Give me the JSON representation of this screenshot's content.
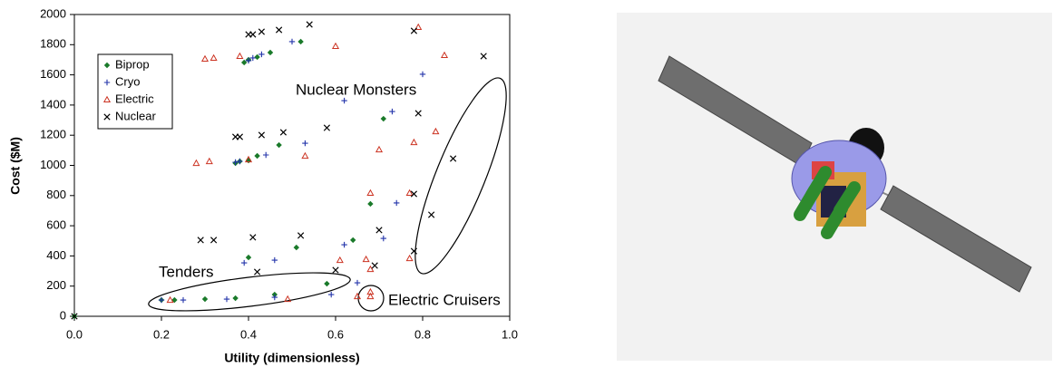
{
  "chart_data": {
    "type": "scatter",
    "xlabel": "Utility (dimensionless)",
    "ylabel": "Cost ($M)",
    "xlim": [
      0,
      1
    ],
    "ylim": [
      0,
      2000
    ],
    "xticks": [
      {
        "value": 0,
        "label": "0.0"
      },
      0.2,
      0.4,
      0.6,
      0.8,
      {
        "value": 1,
        "label": "1.0"
      }
    ],
    "yticks": [
      0,
      200,
      400,
      600,
      800,
      1000,
      1200,
      1400,
      1600,
      1800,
      2000
    ],
    "legend": "upper left",
    "annotations": [
      "Nuclear Monsters",
      "Tenders",
      "Electric Cruisers"
    ],
    "series": [
      {
        "name": "Biprop",
        "color": "#1a7a2a",
        "marker": "diamond",
        "x": [
          0,
          0.2,
          0.23,
          0.3,
          0.37,
          0.46,
          0.58,
          0.51,
          0.64,
          0.68,
          0.4,
          0.37,
          0.38,
          0.4,
          0.42,
          0.47,
          0.71,
          0.52,
          0.4,
          0.42,
          0.45,
          0.39
        ],
        "values": [
          0,
          108,
          108,
          114,
          120,
          144,
          216,
          456,
          505,
          745,
          390,
          1015,
          1027,
          1033,
          1063,
          1135,
          1309,
          1820,
          1700,
          1718,
          1748,
          1682
        ]
      },
      {
        "name": "Cryo",
        "color": "#2233aa",
        "marker": "plus",
        "x": [
          0.2,
          0.25,
          0.35,
          0.46,
          0.59,
          0.65,
          0.62,
          0.71,
          0.74,
          0.37,
          0.38,
          0.44,
          0.53,
          0.62,
          0.73,
          0.8,
          0.4,
          0.41,
          0.43,
          0.5,
          0.39,
          0.46
        ],
        "values": [
          108,
          108,
          114,
          126,
          144,
          222,
          474,
          516,
          751,
          1021,
          1027,
          1069,
          1147,
          1429,
          1357,
          1604,
          1694,
          1712,
          1736,
          1820,
          354,
          372
        ]
      },
      {
        "name": "Electric",
        "color": "#cc3322",
        "marker": "triangle",
        "x": [
          0.22,
          0.49,
          0.61,
          0.65,
          0.68,
          0.68,
          0.68,
          0.67,
          0.68,
          0.7,
          0.77,
          0.78,
          0.28,
          0.31,
          0.4,
          0.53,
          0.3,
          0.32,
          0.38,
          0.6,
          0.79,
          0.85,
          0.83,
          0.77
        ],
        "values": [
          108,
          114,
          372,
          132,
          132,
          162,
          312,
          378,
          817,
          1105,
          817,
          1153,
          1015,
          1027,
          1039,
          1063,
          1706,
          1712,
          1724,
          1790,
          1916,
          1730,
          1225,
          384
        ]
      },
      {
        "name": "Nuclear",
        "color": "#000000",
        "marker": "x",
        "x": [
          0,
          0.29,
          0.32,
          0.41,
          0.52,
          0.42,
          0.6,
          0.69,
          0.7,
          0.78,
          0.37,
          0.38,
          0.43,
          0.48,
          0.58,
          0.78,
          0.79,
          0.87,
          0.82,
          0.94,
          0.4,
          0.41,
          0.43,
          0.47,
          0.54,
          0.78
        ],
        "values": [
          0,
          505,
          505,
          523,
          535,
          294,
          306,
          336,
          571,
          432,
          1189,
          1189,
          1201,
          1219,
          1249,
          811,
          1345,
          1045,
          673,
          1724,
          1868,
          1868,
          1886,
          1898,
          1934,
          1892
        ]
      }
    ]
  }
}
